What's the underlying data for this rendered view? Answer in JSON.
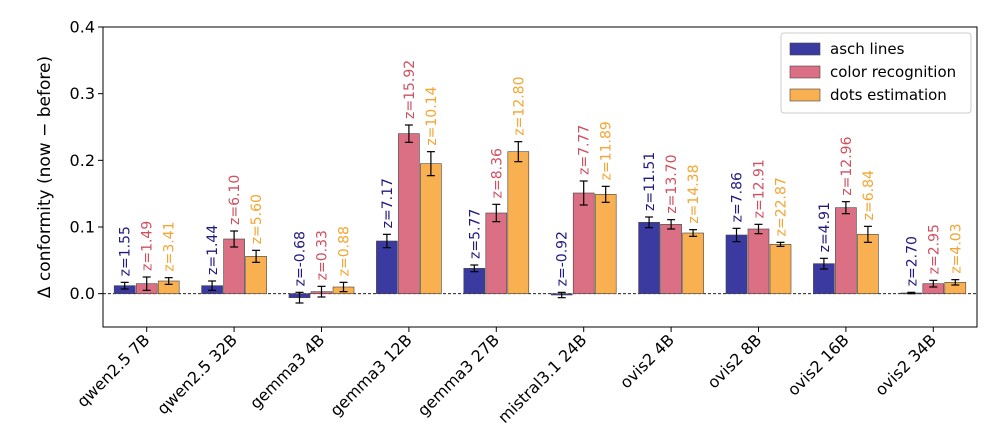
{
  "chart_data": {
    "type": "bar",
    "ylabel": "Δ conformity (now − before)",
    "ylim": [
      -0.05,
      0.4
    ],
    "yticks": [
      "0.0",
      "0.1",
      "0.2",
      "0.3",
      "0.4"
    ],
    "categories": [
      "qwen2.5 7B",
      "qwen2.5 32B",
      "gemma3 4B",
      "gemma3 12B",
      "gemma3 27B",
      "mistral3.1 24B",
      "ovis2 4B",
      "ovis2 8B",
      "ovis2 16B",
      "ovis2 34B"
    ],
    "legend_position": "top-right",
    "zero_line": "dashed",
    "series": [
      {
        "name": "asch lines",
        "color": "#3b3aa0",
        "label_color": "#1f1a80",
        "values": [
          0.012,
          0.012,
          -0.006,
          0.079,
          0.038,
          -0.002,
          0.107,
          0.088,
          0.045,
          0.001
        ],
        "errors": [
          0.005,
          0.007,
          0.008,
          0.01,
          0.005,
          0.004,
          0.008,
          0.01,
          0.008,
          0.001
        ],
        "z_labels": [
          "z=1.55",
          "z=1.44",
          "z=-0.68",
          "z=7.17",
          "z=5.77",
          "z=-0.92",
          "z=11.51",
          "z=7.86",
          "z=4.91",
          "z=2.70"
        ]
      },
      {
        "name": "color recognition",
        "color": "#db6f84",
        "label_color": "#d0505f",
        "values": [
          0.015,
          0.082,
          0.003,
          0.24,
          0.121,
          0.151,
          0.104,
          0.097,
          0.129,
          0.015
        ],
        "errors": [
          0.01,
          0.012,
          0.008,
          0.013,
          0.013,
          0.018,
          0.007,
          0.007,
          0.009,
          0.005
        ],
        "z_labels": [
          "z=1.49",
          "z=6.10",
          "z=0.33",
          "z=15.92",
          "z=8.36",
          "z=7.77",
          "z=13.70",
          "z=12.91",
          "z=12.96",
          "z=2.95"
        ]
      },
      {
        "name": "dots estimation",
        "color": "#f9b050",
        "label_color": "#f5a531",
        "values": [
          0.019,
          0.056,
          0.01,
          0.195,
          0.213,
          0.149,
          0.091,
          0.074,
          0.089,
          0.017
        ],
        "errors": [
          0.005,
          0.009,
          0.007,
          0.018,
          0.015,
          0.012,
          0.005,
          0.003,
          0.012,
          0.004
        ],
        "z_labels": [
          "z=3.41",
          "z=5.60",
          "z=0.88",
          "z=10.14",
          "z=12.80",
          "z=11.89",
          "z=14.38",
          "z=22.87",
          "z=6.84",
          "z=4.03"
        ]
      }
    ]
  }
}
